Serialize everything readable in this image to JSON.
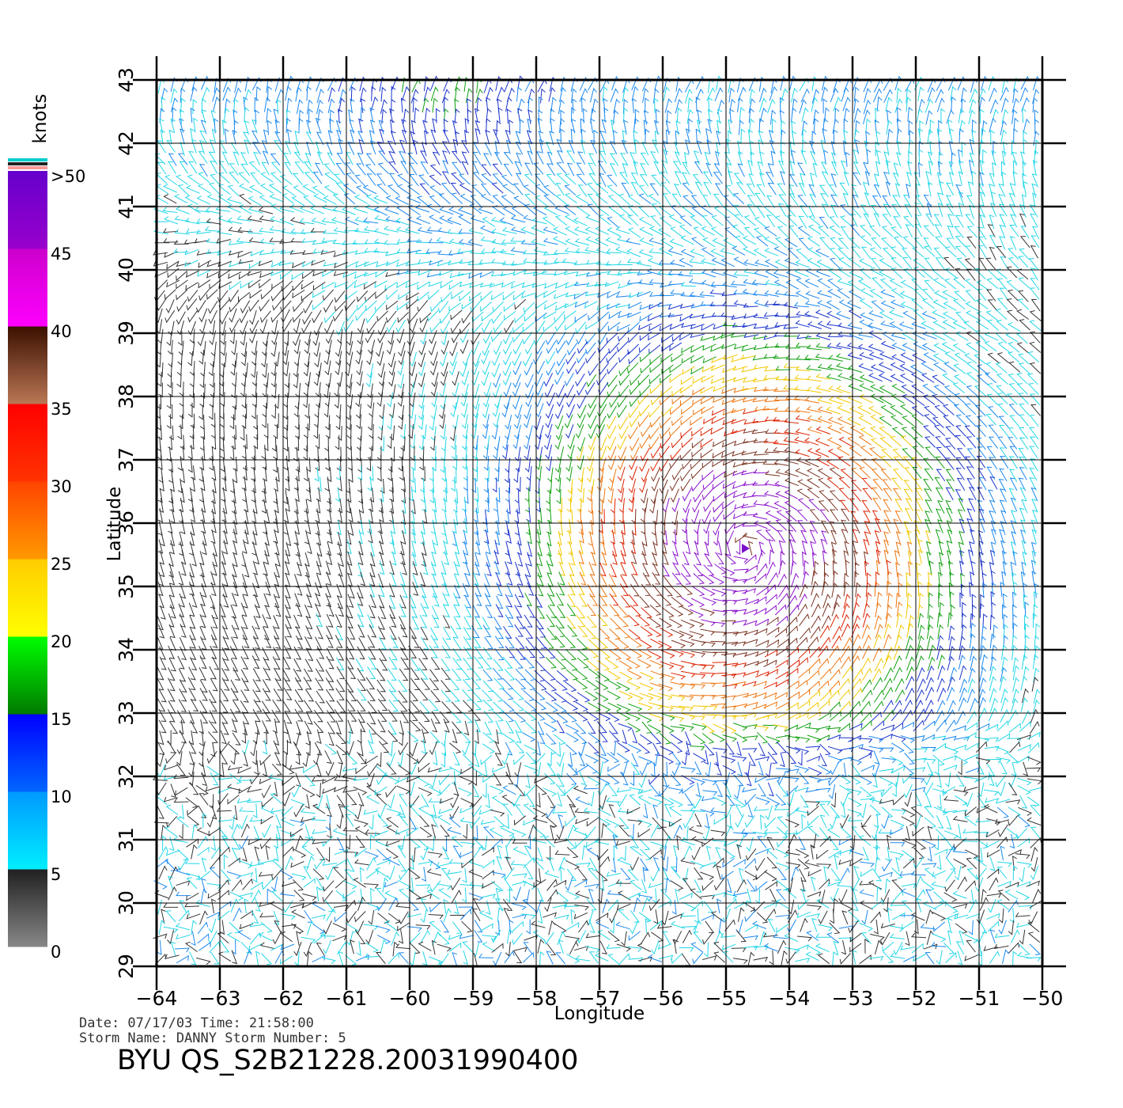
{
  "map": {
    "lon_range": [
      -64,
      -50
    ],
    "lat_range": [
      29,
      43
    ],
    "xlabel": "Longitude",
    "ylabel": "Latitude",
    "lon_ticks": [
      "-64",
      "-63",
      "-62",
      "-61",
      "-60",
      "-59",
      "-58",
      "-57",
      "-56",
      "-55",
      "-54",
      "-53",
      "-52",
      "-51",
      "-50"
    ],
    "lat_ticks": [
      "43",
      "42",
      "41",
      "40",
      "39",
      "38",
      "37",
      "36",
      "35",
      "34",
      "33",
      "32",
      "31",
      "30",
      "29"
    ],
    "grid": true,
    "storm_center": {
      "lon": -54.7,
      "lat": 35.6
    },
    "symbol": "wind-barbs"
  },
  "colorbar": {
    "units": "knots",
    "labels": [
      ">50",
      "45",
      "40",
      "35",
      "30",
      "25",
      "20",
      "15",
      "10",
      "5",
      "0"
    ],
    "bands": [
      {
        "label": "0-5 kt",
        "from": "#888888",
        "to": "#202020"
      },
      {
        "label": "5-10 kt",
        "from": "#00eeff",
        "to": "#0099ff"
      },
      {
        "label": "10-15 kt",
        "from": "#0066ff",
        "to": "#0000ff"
      },
      {
        "label": "15-20 kt",
        "from": "#007a00",
        "to": "#00ff00"
      },
      {
        "label": "20-25 kt",
        "from": "#ffff00",
        "to": "#ffcc00"
      },
      {
        "label": "25-30 kt",
        "from": "#ff9900",
        "to": "#ff4400"
      },
      {
        "label": "30-35 kt",
        "from": "#ff3300",
        "to": "#ff0000"
      },
      {
        "label": "35-40 kt",
        "from": "#bb7755",
        "to": "#3a1000"
      },
      {
        "label": "40-45 kt",
        "from": "#ff00ff",
        "to": "#cc00cc"
      },
      {
        "label": "45-50 kt",
        "from": "#9900cc",
        "to": "#6600cc"
      }
    ],
    "cap_colors": [
      "#00cccc",
      "#222222",
      "#ff9999"
    ]
  },
  "footer": {
    "date_line": "Date: 07/17/03   Time: 21:58:00",
    "storm_line": "Storm Name: DANNY   Storm Number: 5",
    "product": "BYU QS_S2B21228.20031990400"
  }
}
